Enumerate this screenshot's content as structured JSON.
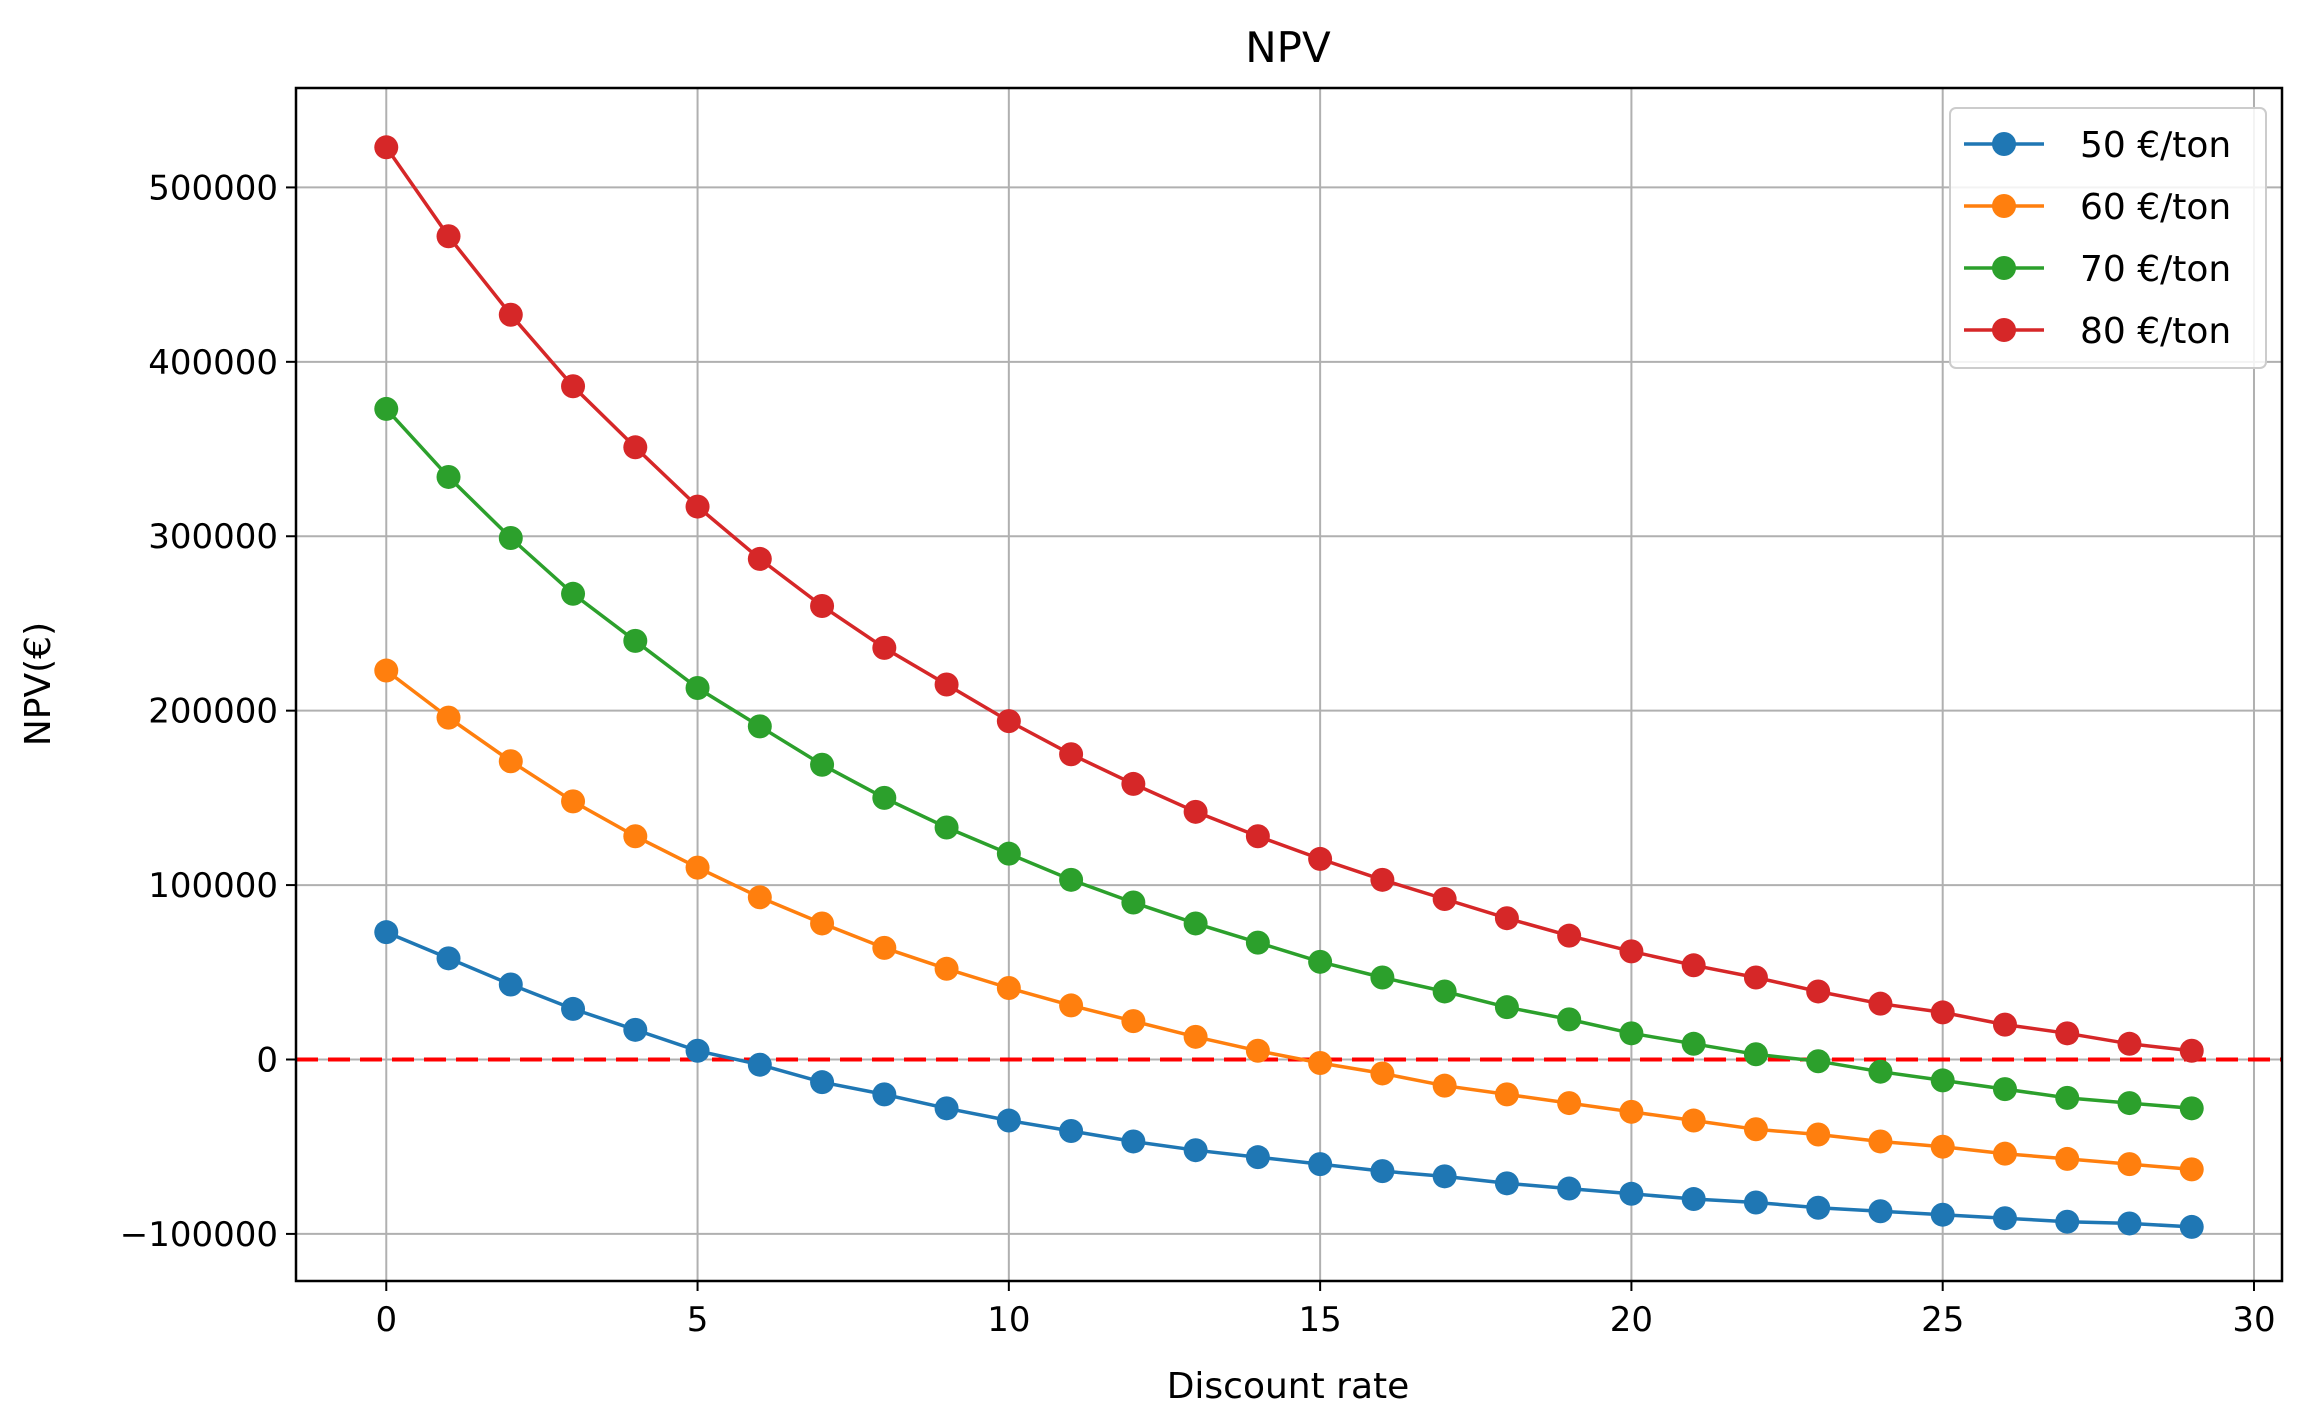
{
  "chart_data": {
    "type": "line",
    "title": "NPV",
    "xlabel": "Discount rate",
    "ylabel": "NPV(€)",
    "xlim": [
      -1.45,
      30.45
    ],
    "ylim": [
      -127000,
      557000
    ],
    "xticks": [
      0,
      5,
      10,
      15,
      20,
      25,
      30
    ],
    "yticks": [
      -100000,
      0,
      100000,
      200000,
      300000,
      400000,
      500000
    ],
    "ytick_labels": [
      "−100000",
      "0",
      "100000",
      "200000",
      "300000",
      "400000",
      "500000"
    ],
    "grid": true,
    "legend_position": "top-right",
    "x": [
      0,
      1,
      2,
      3,
      4,
      5,
      6,
      7,
      8,
      9,
      10,
      11,
      12,
      13,
      14,
      15,
      16,
      17,
      18,
      19,
      20,
      21,
      22,
      23,
      24,
      25,
      26,
      27,
      28,
      29
    ],
    "series": [
      {
        "name": "50 €/ton",
        "color": "#1f77b4",
        "values": [
          73000,
          58000,
          43000,
          29000,
          17000,
          5000,
          -3000,
          -13000,
          -20000,
          -28000,
          -35000,
          -41000,
          -47000,
          -52000,
          -56000,
          -60000,
          -64000,
          -67000,
          -71000,
          -74000,
          -77000,
          -80000,
          -82000,
          -85000,
          -87000,
          -89000,
          -91000,
          -93000,
          -94000,
          -96000
        ]
      },
      {
        "name": "60 €/ton",
        "color": "#ff7f0e",
        "values": [
          223000,
          196000,
          171000,
          148000,
          128000,
          110000,
          93000,
          78000,
          64000,
          52000,
          41000,
          31000,
          22000,
          13000,
          5000,
          -2000,
          -8000,
          -15000,
          -20000,
          -25000,
          -30000,
          -35000,
          -40000,
          -43000,
          -47000,
          -50000,
          -54000,
          -57000,
          -60000,
          -63000
        ]
      },
      {
        "name": "70 €/ton",
        "color": "#2ca02c",
        "values": [
          373000,
          334000,
          299000,
          267000,
          240000,
          213000,
          191000,
          169000,
          150000,
          133000,
          118000,
          103000,
          90000,
          78000,
          67000,
          56000,
          47000,
          39000,
          30000,
          23000,
          15000,
          9000,
          3000,
          -1000,
          -7000,
          -12000,
          -17000,
          -22000,
          -25000,
          -28000
        ]
      },
      {
        "name": "80 €/ton",
        "color": "#d62728",
        "values": [
          523000,
          472000,
          427000,
          386000,
          351000,
          317000,
          287000,
          260000,
          236000,
          215000,
          194000,
          175000,
          158000,
          142000,
          128000,
          115000,
          103000,
          92000,
          81000,
          71000,
          62000,
          54000,
          47000,
          39000,
          32000,
          27000,
          20000,
          15000,
          9000,
          5000
        ]
      }
    ],
    "reference_line": {
      "y": 0,
      "color": "#ff0000",
      "style": "dashed"
    }
  }
}
